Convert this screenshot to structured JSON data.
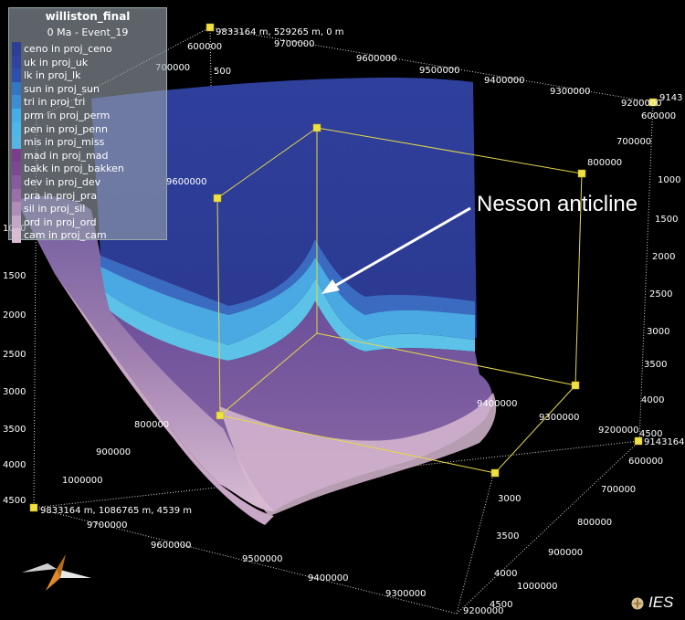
{
  "legend": {
    "title": "williston_final",
    "subtitle": "0 Ma - Event_19",
    "items": [
      {
        "label": "ceno in proj_ceno",
        "color": "#2c3f94"
      },
      {
        "label": "uk in proj_uk",
        "color": "#2e44a0"
      },
      {
        "label": "lk in proj_lk",
        "color": "#2f4fae"
      },
      {
        "label": "sun in proj_sun",
        "color": "#3277c2"
      },
      {
        "label": "tri in proj_tri",
        "color": "#3c8ed4"
      },
      {
        "label": "prm in proj_perm",
        "color": "#44aee8"
      },
      {
        "label": "pen in proj_penn",
        "color": "#4cb8ea"
      },
      {
        "label": "mis in proj_miss",
        "color": "#55b6e4"
      },
      {
        "label": "mad in proj_mad",
        "color": "#7a3e8a"
      },
      {
        "label": "bakk in proj_bakken",
        "color": "#7c4892"
      },
      {
        "label": "dev in proj_dev",
        "color": "#8a5aa0"
      },
      {
        "label": "pra in proj_pra",
        "color": "#9d6fa9"
      },
      {
        "label": "sil in proj_sil",
        "color": "#b08cb8"
      },
      {
        "label": "ord in proj_ord",
        "color": "#c4a6c8"
      },
      {
        "label": "cam in proj_cam",
        "color": "#d8bcd2"
      }
    ]
  },
  "annotation": {
    "label": "Nesson anticline"
  },
  "corner_labels": {
    "top": "9833164 m, 529265 m, 0 m",
    "bottom_left": "9833164 m, 1086765 m, 4539 m",
    "right_top": "9143",
    "right_mid": "9143164"
  },
  "axes": {
    "top_northing": [
      "9700000",
      "9600000",
      "9500000",
      "9400000",
      "9300000",
      "9200000"
    ],
    "top_easting_left": [
      "600000",
      "700000"
    ],
    "top_easting_right": [
      "600000",
      "700000",
      "800000"
    ],
    "left_depth": [
      "500",
      "1000",
      "1500",
      "2000",
      "2500",
      "3000",
      "3500",
      "4000",
      "4500"
    ],
    "right_depth": [
      "1000",
      "1500",
      "2000",
      "2500",
      "3000",
      "3500",
      "4000",
      "4500"
    ],
    "inner_easting": [
      "800000",
      "900000",
      "1000000"
    ],
    "inner_northing": [
      "9400000",
      "9300000",
      "9200000"
    ],
    "inner_box_labels": [
      "9600000"
    ],
    "bottom_northing": [
      "9700000",
      "9600000",
      "9500000",
      "9400000",
      "9300000",
      "9200000"
    ],
    "bottom_easting_right": [
      "600000",
      "700000",
      "800000",
      "900000",
      "1000000"
    ],
    "front_depth": [
      "3000",
      "3500",
      "4000",
      "4500"
    ]
  },
  "branding": {
    "logo_text": "IES",
    "logo_icon": "ies-logo-icon"
  },
  "widgets": {
    "orientation_icon": "compass-orientation-icon"
  }
}
